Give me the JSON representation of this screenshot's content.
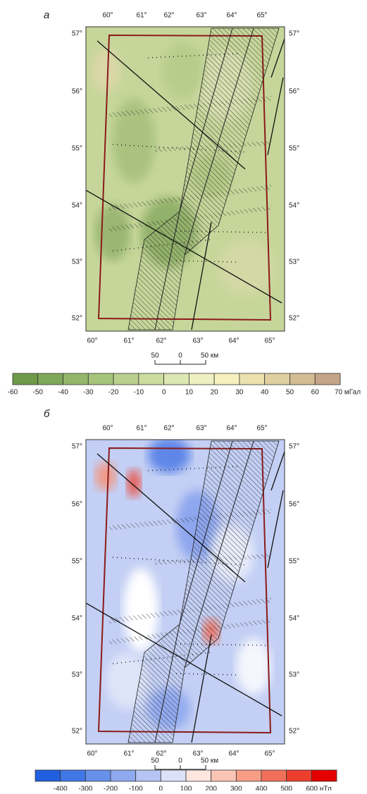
{
  "panels": [
    {
      "label": "а",
      "lon_labels_top": [
        "60°",
        "61°",
        "62°",
        "63°",
        "64°",
        "65°"
      ],
      "lon_labels_bottom": [
        "60°",
        "61°",
        "62°",
        "63°",
        "64°",
        "65°"
      ],
      "lat_labels_left": [
        "57°",
        "56°",
        "55°",
        "54°",
        "53°",
        "52°"
      ],
      "lat_labels_right": [
        "57°",
        "56°",
        "55°",
        "54°",
        "53°",
        "52°"
      ],
      "scale_labels": [
        "50",
        "0",
        "50 км"
      ],
      "colorbar": {
        "labels": [
          "-60",
          "-50",
          "-40",
          "-30",
          "-20",
          "-10",
          "0",
          "10",
          "20",
          "30",
          "40",
          "50",
          "60",
          "70 мГал"
        ],
        "colors": [
          "#6e9a4a",
          "#80a859",
          "#93b76a",
          "#a6c37b",
          "#b9cf8d",
          "#cbdc9f",
          "#dde7b2",
          "#eef0c3",
          "#f5f0bd",
          "#ece2b0",
          "#e0cfa0",
          "#d3bc93",
          "#c4a587"
        ]
      }
    },
    {
      "label": "б",
      "lon_labels_top": [
        "60°",
        "61°",
        "62°",
        "63°",
        "64°",
        "65°"
      ],
      "lon_labels_bottom": [
        "60°",
        "61°",
        "62°",
        "63°",
        "64°",
        "65°"
      ],
      "lat_labels_left": [
        "57°",
        "56°",
        "55°",
        "54°",
        "53°",
        "52°"
      ],
      "lat_labels_right": [
        "57°",
        "56°",
        "55°",
        "54°",
        "53°",
        "52°"
      ],
      "scale_labels": [
        "50",
        "0",
        "50 км"
      ],
      "colorbar": {
        "labels": [
          "-400",
          "-300",
          "-200",
          "-100",
          "0",
          "100",
          "200",
          "300",
          "400",
          "500",
          "600 нТл"
        ],
        "colors": [
          "#1f5fe0",
          "#3f78e6",
          "#6690ea",
          "#8ea9ee",
          "#b5c4f3",
          "#dbe2f8",
          "#fde6e0",
          "#fbc5b5",
          "#f79d86",
          "#f2705a",
          "#ec3d2d",
          "#e40000"
        ]
      }
    }
  ]
}
